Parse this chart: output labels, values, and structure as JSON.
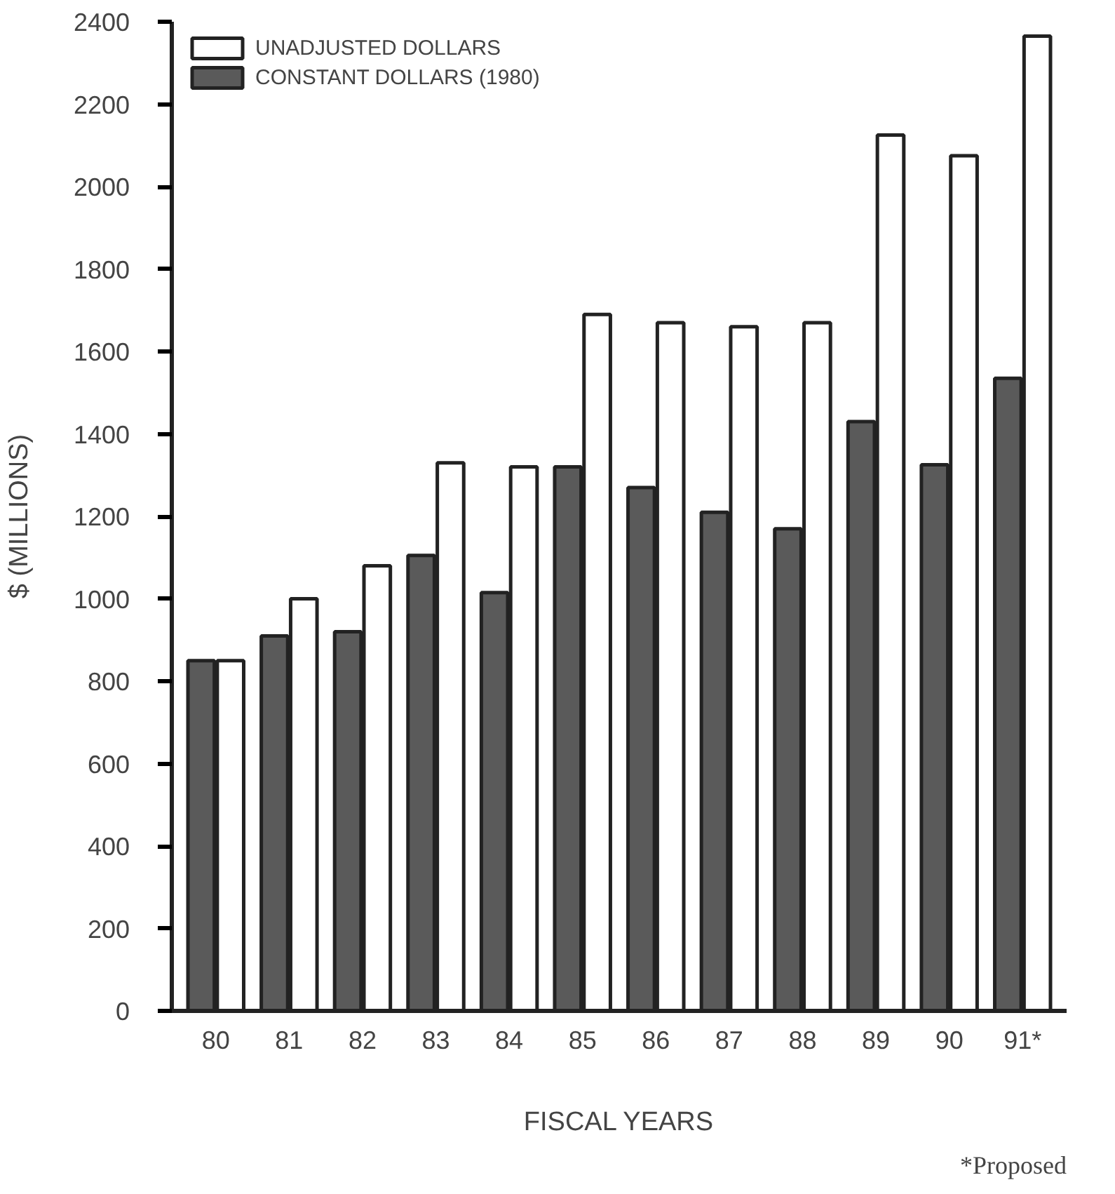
{
  "chart_data": {
    "type": "bar",
    "xlabel": "FISCAL YEARS",
    "ylabel": "$ (MILLIONS)",
    "categories": [
      "80",
      "81",
      "82",
      "83",
      "84",
      "85",
      "86",
      "87",
      "88",
      "89",
      "90",
      "91*"
    ],
    "series": [
      {
        "name": "CONSTANT DOLLARS (1980)",
        "color": "#5a5a5a",
        "values": [
          850,
          910,
          920,
          1105,
          1015,
          1320,
          1270,
          1210,
          1170,
          1430,
          1325,
          1535
        ]
      },
      {
        "name": "UNADJUSTED DOLLARS",
        "color": "#ffffff",
        "values": [
          850,
          1000,
          1080,
          1330,
          1320,
          1690,
          1670,
          1660,
          1670,
          2125,
          2075,
          2365
        ]
      }
    ],
    "ylim": [
      0,
      2400
    ],
    "yticks": [
      0,
      200,
      400,
      600,
      800,
      1000,
      1200,
      1400,
      1600,
      1800,
      2000,
      2200,
      2400
    ],
    "legend": "top left",
    "grid": false,
    "annotations": [
      "*Proposed"
    ]
  }
}
